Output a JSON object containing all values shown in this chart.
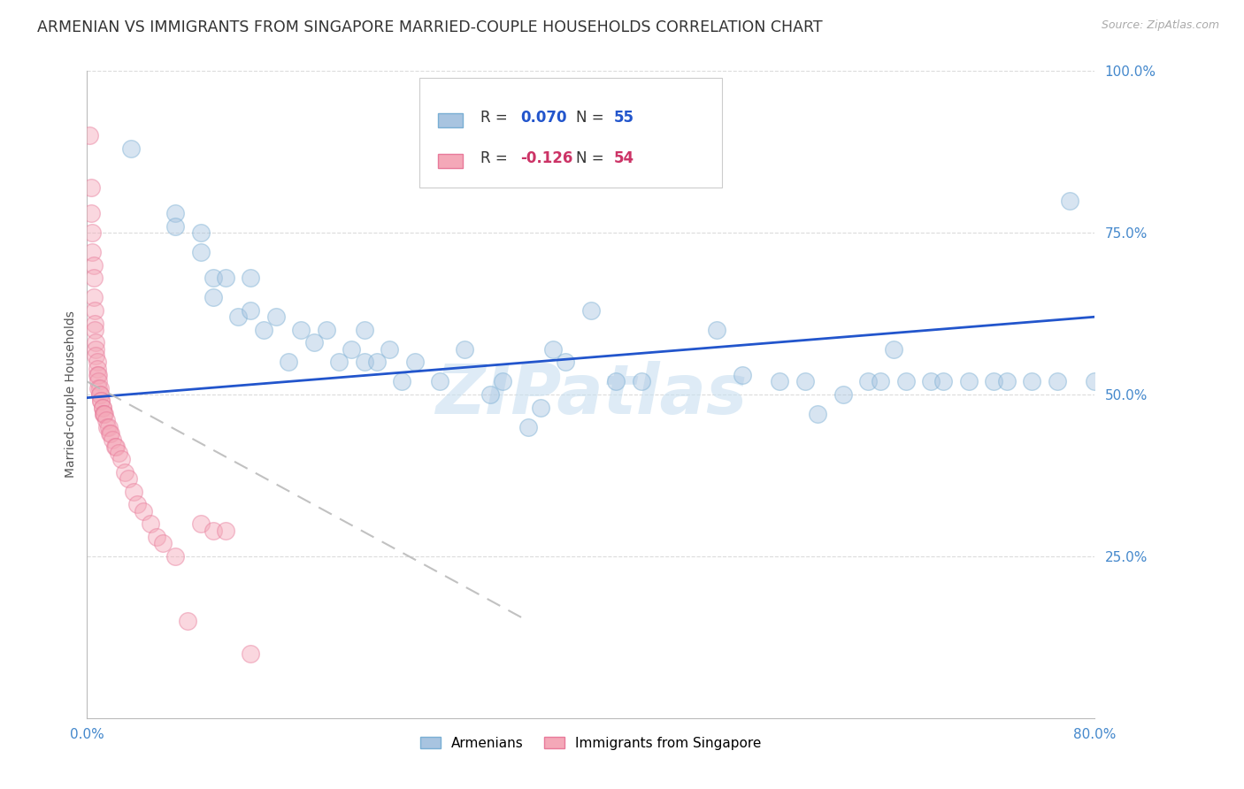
{
  "title": "ARMENIAN VS IMMIGRANTS FROM SINGAPORE MARRIED-COUPLE HOUSEHOLDS CORRELATION CHART",
  "source": "Source: ZipAtlas.com",
  "ylabel": "Married-couple Households",
  "xlim": [
    0.0,
    0.8
  ],
  "ylim": [
    0.0,
    1.0
  ],
  "yticks": [
    0.25,
    0.5,
    0.75,
    1.0
  ],
  "ytick_labels": [
    "25.0%",
    "50.0%",
    "75.0%",
    "100.0%"
  ],
  "xticks": [
    0.0,
    0.1,
    0.2,
    0.3,
    0.4,
    0.5,
    0.6,
    0.7,
    0.8
  ],
  "xtick_labels": [
    "0.0%",
    "",
    "",
    "",
    "",
    "",
    "",
    "",
    "80.0%"
  ],
  "blue_color": "#a8c4e0",
  "blue_edge_color": "#7aafd4",
  "pink_color": "#f4a8b8",
  "pink_edge_color": "#e87a9a",
  "blue_line_color": "#2255cc",
  "pink_line_color": "#cc3366",
  "legend_blue_text_color": "#2255cc",
  "legend_pink_text_color": "#cc3366",
  "watermark": "ZIPatlas",
  "watermark_color": "#c8dff0",
  "blue_scatter_x": [
    0.035,
    0.07,
    0.07,
    0.09,
    0.09,
    0.1,
    0.1,
    0.11,
    0.12,
    0.13,
    0.13,
    0.14,
    0.15,
    0.16,
    0.17,
    0.18,
    0.19,
    0.2,
    0.21,
    0.22,
    0.22,
    0.23,
    0.24,
    0.25,
    0.26,
    0.28,
    0.3,
    0.32,
    0.33,
    0.35,
    0.36,
    0.37,
    0.38,
    0.4,
    0.42,
    0.44,
    0.5,
    0.52,
    0.55,
    0.57,
    0.58,
    0.6,
    0.62,
    0.63,
    0.64,
    0.65,
    0.67,
    0.68,
    0.7,
    0.72,
    0.73,
    0.75,
    0.77,
    0.78,
    0.8
  ],
  "blue_scatter_y": [
    0.88,
    0.78,
    0.76,
    0.75,
    0.72,
    0.68,
    0.65,
    0.68,
    0.62,
    0.63,
    0.68,
    0.6,
    0.62,
    0.55,
    0.6,
    0.58,
    0.6,
    0.55,
    0.57,
    0.55,
    0.6,
    0.55,
    0.57,
    0.52,
    0.55,
    0.52,
    0.57,
    0.5,
    0.52,
    0.45,
    0.48,
    0.57,
    0.55,
    0.63,
    0.52,
    0.52,
    0.6,
    0.53,
    0.52,
    0.52,
    0.47,
    0.5,
    0.52,
    0.52,
    0.57,
    0.52,
    0.52,
    0.52,
    0.52,
    0.52,
    0.52,
    0.52,
    0.52,
    0.8,
    0.52
  ],
  "pink_scatter_x": [
    0.002,
    0.003,
    0.003,
    0.004,
    0.004,
    0.005,
    0.005,
    0.005,
    0.006,
    0.006,
    0.006,
    0.007,
    0.007,
    0.007,
    0.008,
    0.008,
    0.008,
    0.009,
    0.009,
    0.009,
    0.01,
    0.01,
    0.01,
    0.011,
    0.011,
    0.012,
    0.012,
    0.013,
    0.013,
    0.014,
    0.015,
    0.016,
    0.017,
    0.018,
    0.019,
    0.02,
    0.022,
    0.023,
    0.025,
    0.027,
    0.03,
    0.033,
    0.037,
    0.04,
    0.045,
    0.05,
    0.055,
    0.06,
    0.07,
    0.08,
    0.09,
    0.1,
    0.11,
    0.13
  ],
  "pink_scatter_y": [
    0.9,
    0.82,
    0.78,
    0.75,
    0.72,
    0.7,
    0.68,
    0.65,
    0.63,
    0.61,
    0.6,
    0.58,
    0.57,
    0.56,
    0.55,
    0.54,
    0.53,
    0.53,
    0.52,
    0.51,
    0.51,
    0.5,
    0.5,
    0.49,
    0.49,
    0.48,
    0.48,
    0.47,
    0.47,
    0.47,
    0.46,
    0.45,
    0.45,
    0.44,
    0.44,
    0.43,
    0.42,
    0.42,
    0.41,
    0.4,
    0.38,
    0.37,
    0.35,
    0.33,
    0.32,
    0.3,
    0.28,
    0.27,
    0.25,
    0.15,
    0.3,
    0.29,
    0.29,
    0.1
  ],
  "blue_trendline_x": [
    0.0,
    0.8
  ],
  "blue_trendline_y": [
    0.495,
    0.62
  ],
  "pink_trendline_x": [
    0.0,
    0.35
  ],
  "pink_trendline_y": [
    0.52,
    0.15
  ],
  "background_color": "#ffffff",
  "grid_color": "#cccccc",
  "title_fontsize": 12.5,
  "axis_label_fontsize": 10,
  "tick_fontsize": 11,
  "tick_color": "#4488cc",
  "scatter_size": 200,
  "scatter_alpha": 0.45
}
